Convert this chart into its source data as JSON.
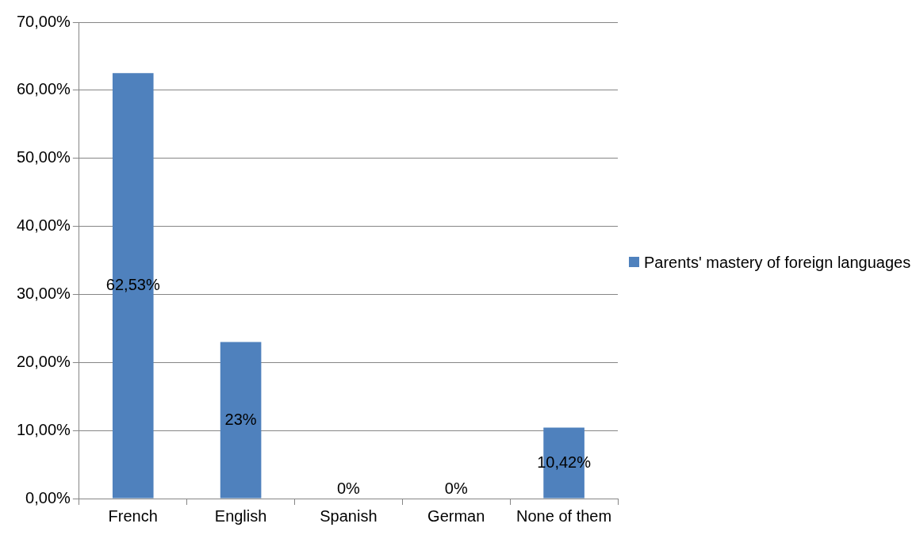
{
  "chart_data": {
    "type": "bar",
    "categories": [
      "French",
      "English",
      "Spanish",
      "German",
      "None of them"
    ],
    "series": [
      {
        "name": "Parents' mastery of foreign languages",
        "color": "#4f81bd",
        "values": [
          62.53,
          23,
          0,
          0,
          10.42
        ],
        "value_labels": [
          "62,53%",
          "23%",
          "0%",
          "0%",
          "10,42%"
        ]
      }
    ],
    "ylim": [
      0,
      70
    ],
    "yticks": [
      {
        "value": 0,
        "label": "0,00%"
      },
      {
        "value": 10,
        "label": "10,00%"
      },
      {
        "value": 20,
        "label": "20,00%"
      },
      {
        "value": 30,
        "label": "30,00%"
      },
      {
        "value": 40,
        "label": "40,00%"
      },
      {
        "value": 50,
        "label": "50,00%"
      },
      {
        "value": 60,
        "label": "60,00%"
      },
      {
        "value": 70,
        "label": "70,00%"
      }
    ],
    "grid": "y",
    "legend": "right"
  }
}
